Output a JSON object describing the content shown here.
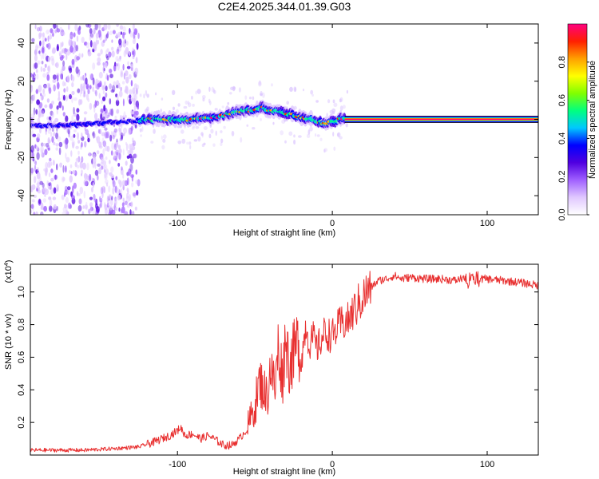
{
  "title": "C2E4.2025.344.01.39.G03",
  "chart_data": [
    {
      "type": "heatmap",
      "name": "spectrogram",
      "xlabel": "Height of straight line (km)",
      "ylabel": "Frequency (Hz)",
      "xlim": [
        -195,
        133
      ],
      "ylim": [
        -50,
        50
      ],
      "xticks": [
        -100,
        0,
        100
      ],
      "xtick_labels": [
        "-100",
        "0",
        "100"
      ],
      "yticks": [
        -40,
        -20,
        0,
        20,
        40
      ],
      "ytick_labels": [
        "-40",
        "-20",
        "0",
        "20",
        "40"
      ],
      "ridge": {
        "description": "signal band centre frequency along height",
        "x": [
          -195,
          -170,
          -150,
          -130,
          -120,
          -100,
          -90,
          -80,
          -70,
          -60,
          -50,
          -45,
          -40,
          -35,
          -30,
          -25,
          -20,
          -15,
          -10,
          -5,
          0,
          5,
          8,
          133
        ],
        "y": [
          -3,
          -3,
          -2,
          -1,
          0,
          0,
          0,
          1,
          2,
          4,
          5,
          6,
          5,
          4,
          3,
          2,
          1,
          0,
          -1,
          -2,
          -1,
          0,
          0,
          0
        ]
      },
      "noise_region_x": [
        -195,
        -125
      ],
      "colorbar": {
        "label": "Normalized spectral amplitude",
        "range": [
          0,
          1
        ],
        "ticks": [
          0.0,
          0.2,
          0.4,
          0.6,
          0.8
        ],
        "tick_labels": [
          "0.0",
          "0.2",
          "0.4",
          "0.6",
          "0.8"
        ],
        "colors": [
          "#ffffff",
          "#e0c8ff",
          "#a060ff",
          "#5000e0",
          "#0000ff",
          "#00c8ff",
          "#00ff80",
          "#80ff00",
          "#ffff00",
          "#ffa000",
          "#ff2000",
          "#ff0080"
        ]
      }
    },
    {
      "type": "line",
      "name": "snr",
      "xlabel": "Height of straight line (km)",
      "ylabel": "SNR (10 * v/v)",
      "yscale_label": "(x10",
      "yscale_exp": "4",
      "xlim": [
        -195,
        133
      ],
      "ylim": [
        0,
        1.17
      ],
      "xticks": [
        -100,
        0,
        100
      ],
      "xtick_labels": [
        "-100",
        "0",
        "100"
      ],
      "yticks": [
        0.2,
        0.4,
        0.6,
        0.8,
        1.0
      ],
      "ytick_labels": [
        "0.2",
        "0.4",
        "0.6",
        "0.8",
        "1.0"
      ],
      "color": "#e83030",
      "series": [
        {
          "name": "SNR",
          "x": [
            -195,
            -180,
            -160,
            -140,
            -125,
            -115,
            -105,
            -100,
            -98,
            -95,
            -90,
            -85,
            -80,
            -75,
            -70,
            -65,
            -60,
            -55,
            -50,
            -47,
            -45,
            -42,
            -40,
            -37,
            -35,
            -32,
            -30,
            -28,
            -25,
            -22,
            -20,
            -17,
            -15,
            -12,
            -10,
            -5,
            0,
            5,
            10,
            15,
            20,
            25,
            30,
            35,
            40,
            45,
            50,
            60,
            70,
            80,
            85,
            88,
            90,
            92,
            95,
            100,
            110,
            120,
            133
          ],
          "y": [
            0.03,
            0.03,
            0.03,
            0.04,
            0.05,
            0.08,
            0.12,
            0.15,
            0.17,
            0.12,
            0.13,
            0.1,
            0.12,
            0.09,
            0.06,
            0.06,
            0.1,
            0.16,
            0.3,
            0.45,
            0.42,
            0.35,
            0.55,
            0.4,
            0.65,
            0.48,
            0.75,
            0.55,
            0.62,
            0.7,
            0.58,
            0.8,
            0.68,
            0.72,
            0.65,
            0.75,
            0.73,
            0.8,
            0.82,
            0.9,
            0.97,
            1.03,
            1.07,
            1.08,
            1.1,
            1.08,
            1.09,
            1.08,
            1.08,
            1.07,
            1.09,
            1.05,
            1.12,
            1.06,
            1.08,
            1.08,
            1.07,
            1.06,
            1.04
          ]
        }
      ]
    }
  ]
}
